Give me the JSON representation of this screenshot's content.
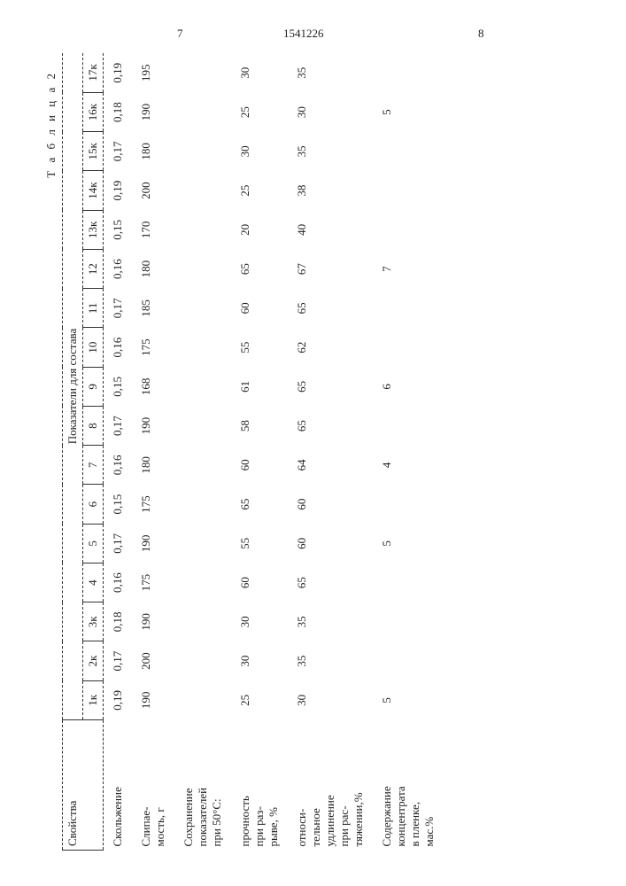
{
  "header": {
    "page_left": "7",
    "doc_number": "1541226",
    "page_right": "8"
  },
  "table": {
    "title": "Т а б л и ц а 2",
    "prop_header": "Свойства",
    "group_header": "Показатели для состава",
    "columns": [
      "1к",
      "2к",
      "3к",
      "4",
      "5",
      "6",
      "7",
      "8",
      "9",
      "10",
      "11",
      "12",
      "13к",
      "14к",
      "15к",
      "16к",
      "17к"
    ],
    "rows": [
      {
        "label": "Скольжение",
        "values": [
          "0,19",
          "0,17",
          "0,18",
          "0,16",
          "0,17",
          "0,15",
          "0,16",
          "0,17",
          "0,15",
          "0,16",
          "0,17",
          "0,16",
          "0,15",
          "0,19",
          "0,17",
          "0,18",
          "0,19"
        ]
      },
      {
        "label": "Слипае-\nмость, г",
        "values": [
          "190",
          "200",
          "190",
          "175",
          "190",
          "175",
          "180",
          "190",
          "168",
          "175",
          "185",
          "180",
          "170",
          "200",
          "180",
          "190",
          "195"
        ]
      },
      {
        "label": "Сохранение\nпоказателей\nпри 50°С:",
        "values": [
          "",
          "",
          "",
          "",
          "",
          "",
          "",
          "",
          "",
          "",
          "",
          "",
          "",
          "",
          "",
          "",
          ""
        ]
      },
      {
        "label": "прочность\nпри раз-\nрыве, %",
        "values": [
          "25",
          "30",
          "30",
          "60",
          "55",
          "65",
          "60",
          "58",
          "61",
          "55",
          "60",
          "65",
          "20",
          "25",
          "30",
          "25",
          "30"
        ]
      },
      {
        "label": "относи-\nтельное\nудлинение\nпри рас-\nтяжении,%",
        "values": [
          "30",
          "35",
          "35",
          "65",
          "60",
          "60",
          "64",
          "65",
          "65",
          "62",
          "65",
          "67",
          "40",
          "38",
          "35",
          "30",
          "35"
        ]
      },
      {
        "label": "Содержание\nконцентрата\nв пленке,\nмас.%",
        "values": [
          "5",
          "",
          "",
          "",
          "5",
          "",
          "4",
          "",
          "6",
          "",
          "",
          "7",
          "",
          "",
          "",
          "5",
          ""
        ]
      }
    ]
  }
}
